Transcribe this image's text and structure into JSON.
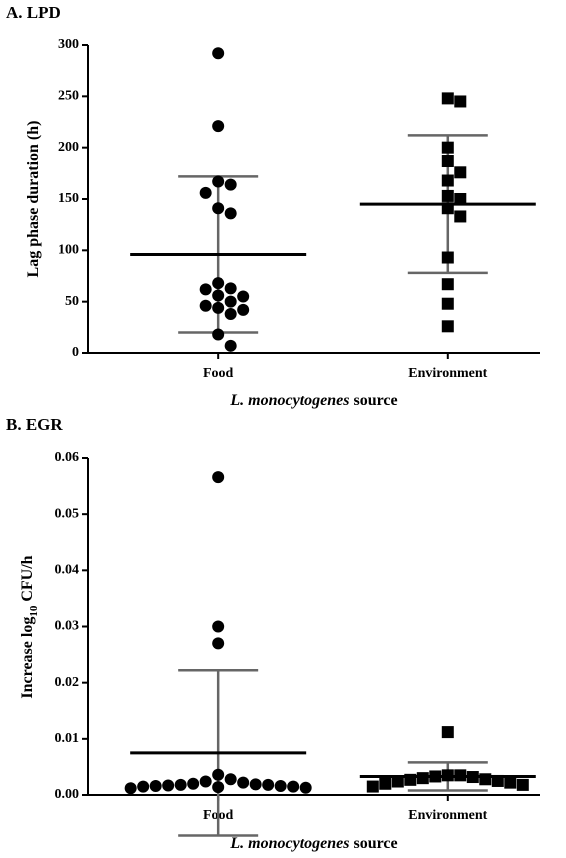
{
  "chart_data": [
    {
      "type": "scatter",
      "title": "A. LPD",
      "ylabel": "Lag phase duration (h)",
      "xlabel_italic": "L. monocytogenes",
      "xlabel_rest": "source",
      "categories": [
        "Food",
        "Environment"
      ],
      "series": [
        {
          "name": "Food",
          "marker": "circle",
          "color": "#000000",
          "values": [
            292,
            221,
            167,
            164,
            156,
            141,
            136,
            68,
            63,
            62,
            56,
            55,
            50,
            46,
            44,
            42,
            38,
            18,
            7
          ],
          "mean": 96,
          "sd": 76
        },
        {
          "name": "Environment",
          "marker": "square",
          "color": "#000000",
          "values": [
            248,
            245,
            200,
            187,
            176,
            168,
            153,
            150,
            141,
            133,
            93,
            67,
            48,
            26
          ],
          "mean": 145,
          "sd": 67
        }
      ],
      "ylim": [
        0,
        300
      ],
      "yticks": [
        0,
        50,
        100,
        150,
        200,
        250,
        300
      ]
    },
    {
      "type": "scatter",
      "title": "B. EGR",
      "ylabel": "Increase log",
      "ylabel_sub": "10",
      "ylabel_rest": "CFU/h",
      "xlabel_italic": "L. monocytogenes",
      "xlabel_rest": "source",
      "categories": [
        "Food",
        "Environment"
      ],
      "series": [
        {
          "name": "Food",
          "marker": "circle",
          "color": "#000000",
          "values": [
            0.0566,
            0.03,
            0.027,
            0.0036,
            0.0028,
            0.0024,
            0.0022,
            0.002,
            0.0019,
            0.0018,
            0.0018,
            0.0017,
            0.0016,
            0.0016,
            0.0015,
            0.0015,
            0.0014,
            0.0013,
            0.0012
          ],
          "mean": 0.0075,
          "sd": 0.0147
        },
        {
          "name": "Environment",
          "marker": "square",
          "color": "#000000",
          "values": [
            0.0112,
            0.0035,
            0.0035,
            0.0033,
            0.0032,
            0.003,
            0.0028,
            0.0027,
            0.0025,
            0.0024,
            0.0022,
            0.002,
            0.0018,
            0.0015
          ],
          "mean": 0.0033,
          "sd": 0.0025
        }
      ],
      "ylim": [
        0,
        0.06
      ],
      "yticks": [
        {
          "value": 0,
          "label": "0.00"
        },
        0.01,
        0.02,
        0.03,
        0.04,
        0.05,
        0.06
      ]
    }
  ]
}
